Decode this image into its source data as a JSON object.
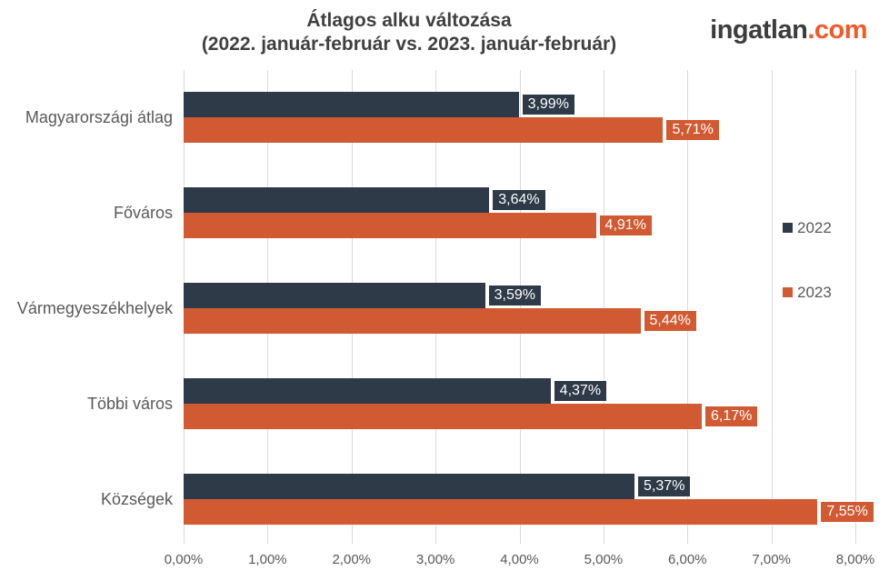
{
  "title": {
    "line1": "Átlagos alku változása",
    "line2": "(2022. január-február vs. 2023. január-február)"
  },
  "logo": {
    "name": "ingatlan",
    "tld": ".com",
    "name_color": "#3d3d3d",
    "tld_color": "#f15a29"
  },
  "colors": {
    "series_2022": "#2f3a48",
    "series_2023": "#d15a33",
    "gridline": "#d9d9d9",
    "axis_text": "#595959",
    "title_text": "#404040",
    "data_label_text": "#ffffff"
  },
  "legend": {
    "position": "right",
    "items": [
      {
        "label": "2022",
        "color": "#2f3a48"
      },
      {
        "label": "2023",
        "color": "#d15a33"
      }
    ]
  },
  "chart_data": {
    "type": "bar",
    "orientation": "horizontal",
    "title": "Átlagos alku változása (2022. január-február vs. 2023. január-február)",
    "categories": [
      "Magyarországi átlag",
      "Főváros",
      "Vármegyeszékhelyek",
      "Többi város",
      "Községek"
    ],
    "series": [
      {
        "name": "2022",
        "color": "#2f3a48",
        "values": [
          3.99,
          3.64,
          3.59,
          4.37,
          5.37
        ],
        "labels": [
          "3,99%",
          "3,64%",
          "3,59%",
          "4,37%",
          "5,37%"
        ]
      },
      {
        "name": "2023",
        "color": "#d15a33",
        "values": [
          5.71,
          4.91,
          5.44,
          6.17,
          7.55
        ],
        "labels": [
          "5,71%",
          "4,91%",
          "5,44%",
          "6,17%",
          "7,55%"
        ]
      }
    ],
    "xlim": [
      0,
      8
    ],
    "x_tick_step": 1,
    "x_tick_labels": [
      "0,00%",
      "1,00%",
      "2,00%",
      "3,00%",
      "4,00%",
      "5,00%",
      "6,00%",
      "7,00%",
      "8,00%"
    ],
    "grid": true,
    "xlabel": "",
    "ylabel": ""
  }
}
